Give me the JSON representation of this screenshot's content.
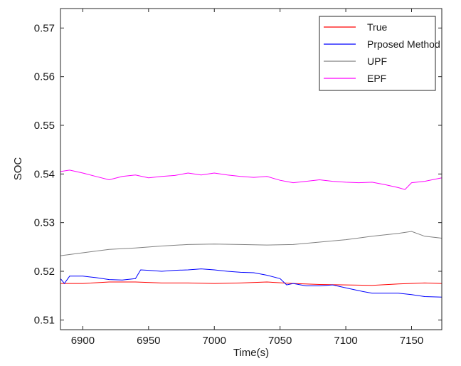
{
  "chart_data": {
    "type": "line",
    "title": "",
    "xlabel": "Time(s)",
    "ylabel": "SOC",
    "xlim": [
      6883,
      7173
    ],
    "ylim": [
      0.508,
      0.574
    ],
    "x_ticks": [
      6900,
      6950,
      7000,
      7050,
      7100,
      7150
    ],
    "x_tick_labels": [
      "6900",
      "6950",
      "7000",
      "7050",
      "7100",
      "7150"
    ],
    "y_ticks": [
      0.51,
      0.52,
      0.53,
      0.54,
      0.55,
      0.56,
      0.57
    ],
    "y_tick_labels": [
      "0.51",
      "0.52",
      "0.53",
      "0.54",
      "0.55",
      "0.56",
      "0.57"
    ],
    "grid": false,
    "legend_position": "top-right",
    "series": [
      {
        "name": "True",
        "color": "#ff0000",
        "x": [
          6883,
          6900,
          6920,
          6940,
          6960,
          6980,
          7000,
          7020,
          7040,
          7060,
          7080,
          7100,
          7120,
          7140,
          7160,
          7173
        ],
        "y": [
          0.5175,
          0.5175,
          0.5178,
          0.5178,
          0.5176,
          0.5176,
          0.5175,
          0.5176,
          0.5178,
          0.5175,
          0.5173,
          0.5172,
          0.5171,
          0.5174,
          0.5176,
          0.5175
        ]
      },
      {
        "name": "Prposed Method",
        "color": "#0000ff",
        "x": [
          6883,
          6886,
          6890,
          6900,
          6910,
          6920,
          6930,
          6940,
          6944,
          6950,
          6960,
          6970,
          6980,
          6990,
          7000,
          7010,
          7020,
          7030,
          7040,
          7050,
          7055,
          7060,
          7070,
          7080,
          7090,
          7100,
          7110,
          7120,
          7130,
          7140,
          7150,
          7160,
          7173
        ],
        "y": [
          0.5185,
          0.5175,
          0.519,
          0.519,
          0.5187,
          0.5183,
          0.5182,
          0.5185,
          0.5203,
          0.5202,
          0.52,
          0.5202,
          0.5203,
          0.5205,
          0.5203,
          0.52,
          0.5198,
          0.5197,
          0.5192,
          0.5185,
          0.5172,
          0.5175,
          0.517,
          0.517,
          0.5172,
          0.5166,
          0.516,
          0.5155,
          0.5155,
          0.5155,
          0.5152,
          0.5148,
          0.5147
        ]
      },
      {
        "name": "UPF",
        "color": "#808080",
        "x": [
          6883,
          6900,
          6920,
          6940,
          6960,
          6980,
          7000,
          7020,
          7040,
          7060,
          7080,
          7100,
          7120,
          7140,
          7150,
          7160,
          7173
        ],
        "y": [
          0.5232,
          0.5238,
          0.5245,
          0.5248,
          0.5252,
          0.5255,
          0.5256,
          0.5255,
          0.5254,
          0.5255,
          0.526,
          0.5265,
          0.5272,
          0.5278,
          0.5282,
          0.5272,
          0.5268
        ]
      },
      {
        "name": "EPF",
        "color": "#ff00ff",
        "x": [
          6883,
          6890,
          6900,
          6910,
          6920,
          6930,
          6940,
          6950,
          6960,
          6970,
          6980,
          6990,
          7000,
          7010,
          7020,
          7030,
          7040,
          7050,
          7060,
          7070,
          7080,
          7090,
          7100,
          7110,
          7120,
          7130,
          7140,
          7145,
          7150,
          7160,
          7173
        ],
        "y": [
          0.5405,
          0.5408,
          0.5402,
          0.5395,
          0.5388,
          0.5395,
          0.5398,
          0.5392,
          0.5395,
          0.5397,
          0.5402,
          0.5398,
          0.5402,
          0.5398,
          0.5395,
          0.5393,
          0.5395,
          0.5387,
          0.5382,
          0.5385,
          0.5388,
          0.5385,
          0.5383,
          0.5382,
          0.5383,
          0.5378,
          0.5372,
          0.5368,
          0.5382,
          0.5385,
          0.5392
        ]
      }
    ]
  }
}
